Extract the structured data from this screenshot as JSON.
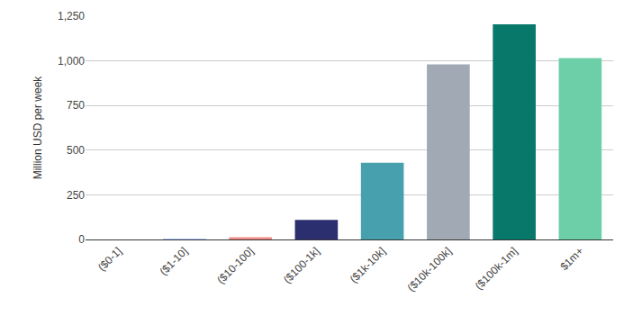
{
  "chart_data": {
    "type": "bar",
    "y_label": "Million USD per week",
    "categories": [
      "($0-1]",
      "($1-10]",
      "($10-100]",
      "($100-1k]",
      "($1k-10k]",
      "($10k-100k]",
      "($100k-1m]",
      "$1m+"
    ],
    "values": [
      0.3,
      2,
      12,
      110,
      430,
      980,
      1205,
      1015
    ],
    "colors": [
      "#f2b544",
      "#5b8def",
      "#f08a87",
      "#2b2f6f",
      "#47a0ad",
      "#a1a9b4",
      "#07786a",
      "#6dcfa8"
    ],
    "ylim": [
      0,
      1250
    ],
    "yticks": [
      0,
      250,
      500,
      750,
      {
        "value": 1000,
        "label": "1,000"
      },
      {
        "value": 1250,
        "label": "1,250"
      }
    ],
    "grid": true
  }
}
